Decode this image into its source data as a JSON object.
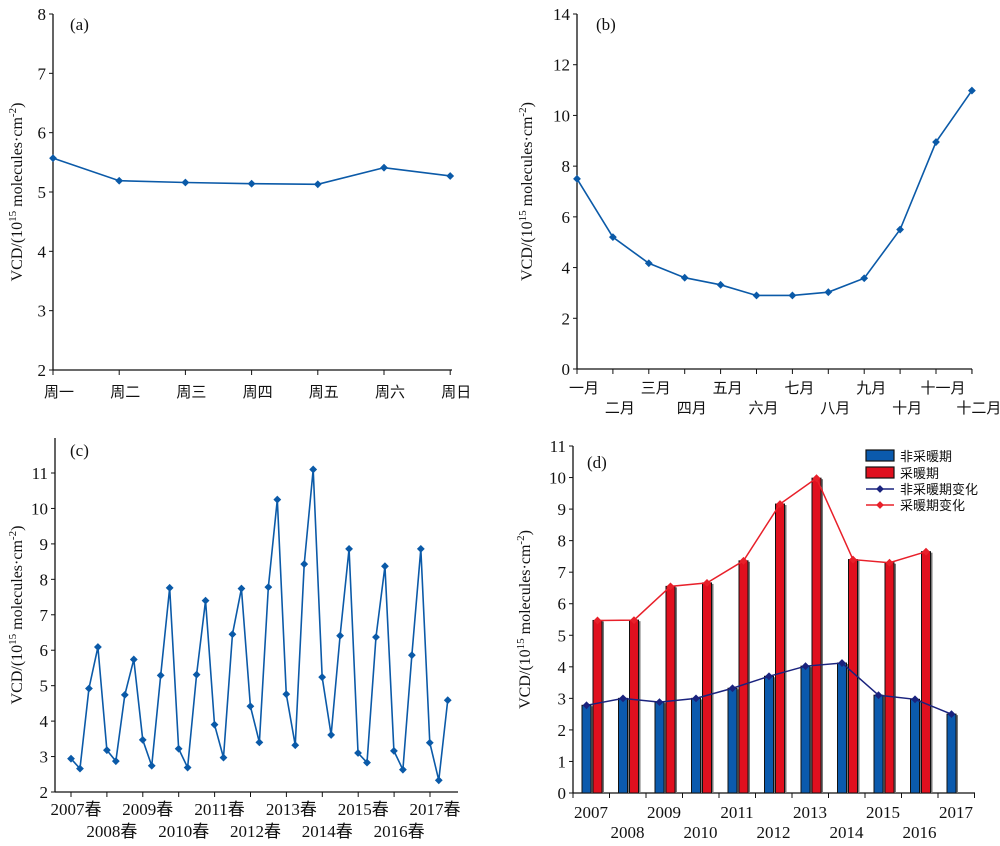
{
  "chart_data": [
    {
      "id": "a",
      "type": "line",
      "panel_label": "(a)",
      "title": "",
      "xlabel": "",
      "ylabel": "VCD/(10^15 molecules·cm^-2)",
      "ylabel_parts": {
        "pre": "VCD/(10",
        "sup1": "15",
        "mid": " molecules·cm",
        "sup2": "-2",
        "post": ")"
      },
      "categories": [
        "周一",
        "周二",
        "周三",
        "周四",
        "周五",
        "周六",
        "周日"
      ],
      "series": [
        {
          "name": "VCD",
          "color": "#0b5aa8",
          "values": [
            5.57,
            5.19,
            5.16,
            5.14,
            5.13,
            5.41,
            5.27
          ]
        }
      ],
      "ylim": [
        2,
        8
      ],
      "yticks": [
        2,
        3,
        4,
        5,
        6,
        7,
        8
      ],
      "grid": false
    },
    {
      "id": "b",
      "type": "line",
      "panel_label": "(b)",
      "title": "",
      "xlabel": "",
      "ylabel": "VCD/(10^15 molecules·cm^-2)",
      "ylabel_parts": {
        "pre": "VCD/(10",
        "sup1": "15",
        "mid": " molecules·cm",
        "sup2": "-2",
        "post": ")"
      },
      "categories": [
        "一月",
        "二月",
        "三月",
        "四月",
        "五月",
        "六月",
        "七月",
        "八月",
        "九月",
        "十月",
        "十一月",
        "十二月"
      ],
      "series": [
        {
          "name": "VCD",
          "color": "#0b5aa8",
          "values": [
            7.5,
            5.2,
            4.17,
            3.6,
            3.32,
            2.9,
            2.9,
            3.03,
            3.58,
            5.5,
            8.95,
            10.98
          ]
        }
      ],
      "ylim": [
        0,
        14
      ],
      "yticks": [
        0,
        2,
        4,
        6,
        8,
        10,
        12,
        14
      ],
      "grid": false
    },
    {
      "id": "c",
      "type": "line",
      "panel_label": "(c)",
      "title": "",
      "xlabel": "",
      "ylabel": "VCD/(10^15 molecules·cm^-2)",
      "ylabel_parts": {
        "pre": "VCD/(10",
        "sup1": "15",
        "mid": " molecules·cm",
        "sup2": "-2",
        "post": ")"
      },
      "categories": [
        "2007春",
        "2008春",
        "2009春",
        "2010春",
        "2011春",
        "2012春",
        "2013春",
        "2014春",
        "2015春",
        "2016春",
        "2017春"
      ],
      "series": [
        {
          "name": "VCD",
          "color": "#0b5aa8",
          "values": [
            2.94,
            2.66,
            4.92,
            6.09,
            3.18,
            2.87,
            4.74,
            5.74,
            3.47,
            2.74,
            5.29,
            7.76,
            3.22,
            2.69,
            5.31,
            7.4,
            3.9,
            2.97,
            6.45,
            7.74,
            4.42,
            3.4,
            7.78,
            10.25,
            4.76,
            3.32,
            8.43,
            11.1,
            5.24,
            3.61,
            6.41,
            8.86,
            3.1,
            2.83,
            6.37,
            8.37,
            3.16,
            2.63,
            5.86,
            8.86,
            3.39,
            2.33,
            4.59
          ]
        }
      ],
      "ylim": [
        2,
        12
      ],
      "yticks": [
        2,
        3,
        4,
        5,
        6,
        7,
        8,
        9,
        10,
        11
      ],
      "grid": false
    },
    {
      "id": "d",
      "type": "bar",
      "panel_label": "(d)",
      "title": "",
      "xlabel": "",
      "ylabel": "VCD/(10^15 molecules·cm^-2)",
      "ylabel_parts": {
        "pre": "VCD/(10",
        "sup1": "15",
        "mid": " molecules·cm",
        "sup2": "-2",
        "post": ")"
      },
      "categories": [
        "2007",
        "2008",
        "2009",
        "2010",
        "2011",
        "2012",
        "2013",
        "2014",
        "2015",
        "2016",
        "2017"
      ],
      "series": [
        {
          "name": "非采暖期",
          "kind": "bar",
          "color": "#0b5aad",
          "values": [
            2.78,
            3.0,
            2.88,
            3.0,
            3.32,
            3.7,
            4.02,
            4.12,
            3.1,
            2.97,
            2.5
          ]
        },
        {
          "name": "采暖期",
          "kind": "bar",
          "color": "#e0101e",
          "values": [
            5.47,
            5.48,
            6.55,
            6.66,
            7.36,
            9.16,
            9.98,
            7.4,
            7.3,
            7.65,
            null
          ]
        },
        {
          "name": "非采暖期变化",
          "kind": "line",
          "color": "#1a237e",
          "values": [
            2.78,
            3.0,
            2.88,
            3.0,
            3.32,
            3.7,
            4.02,
            4.12,
            3.1,
            2.97,
            2.5
          ]
        },
        {
          "name": "采暖期变化",
          "kind": "line",
          "color": "#e8202a",
          "values": [
            5.47,
            5.48,
            6.55,
            6.66,
            7.36,
            9.16,
            9.98,
            7.4,
            7.3,
            7.65,
            null
          ]
        }
      ],
      "ylim": [
        0,
        11
      ],
      "yticks": [
        0,
        1,
        2,
        3,
        4,
        5,
        6,
        7,
        8,
        9,
        10,
        11
      ],
      "legend_position": "top-right",
      "grid": false
    }
  ]
}
